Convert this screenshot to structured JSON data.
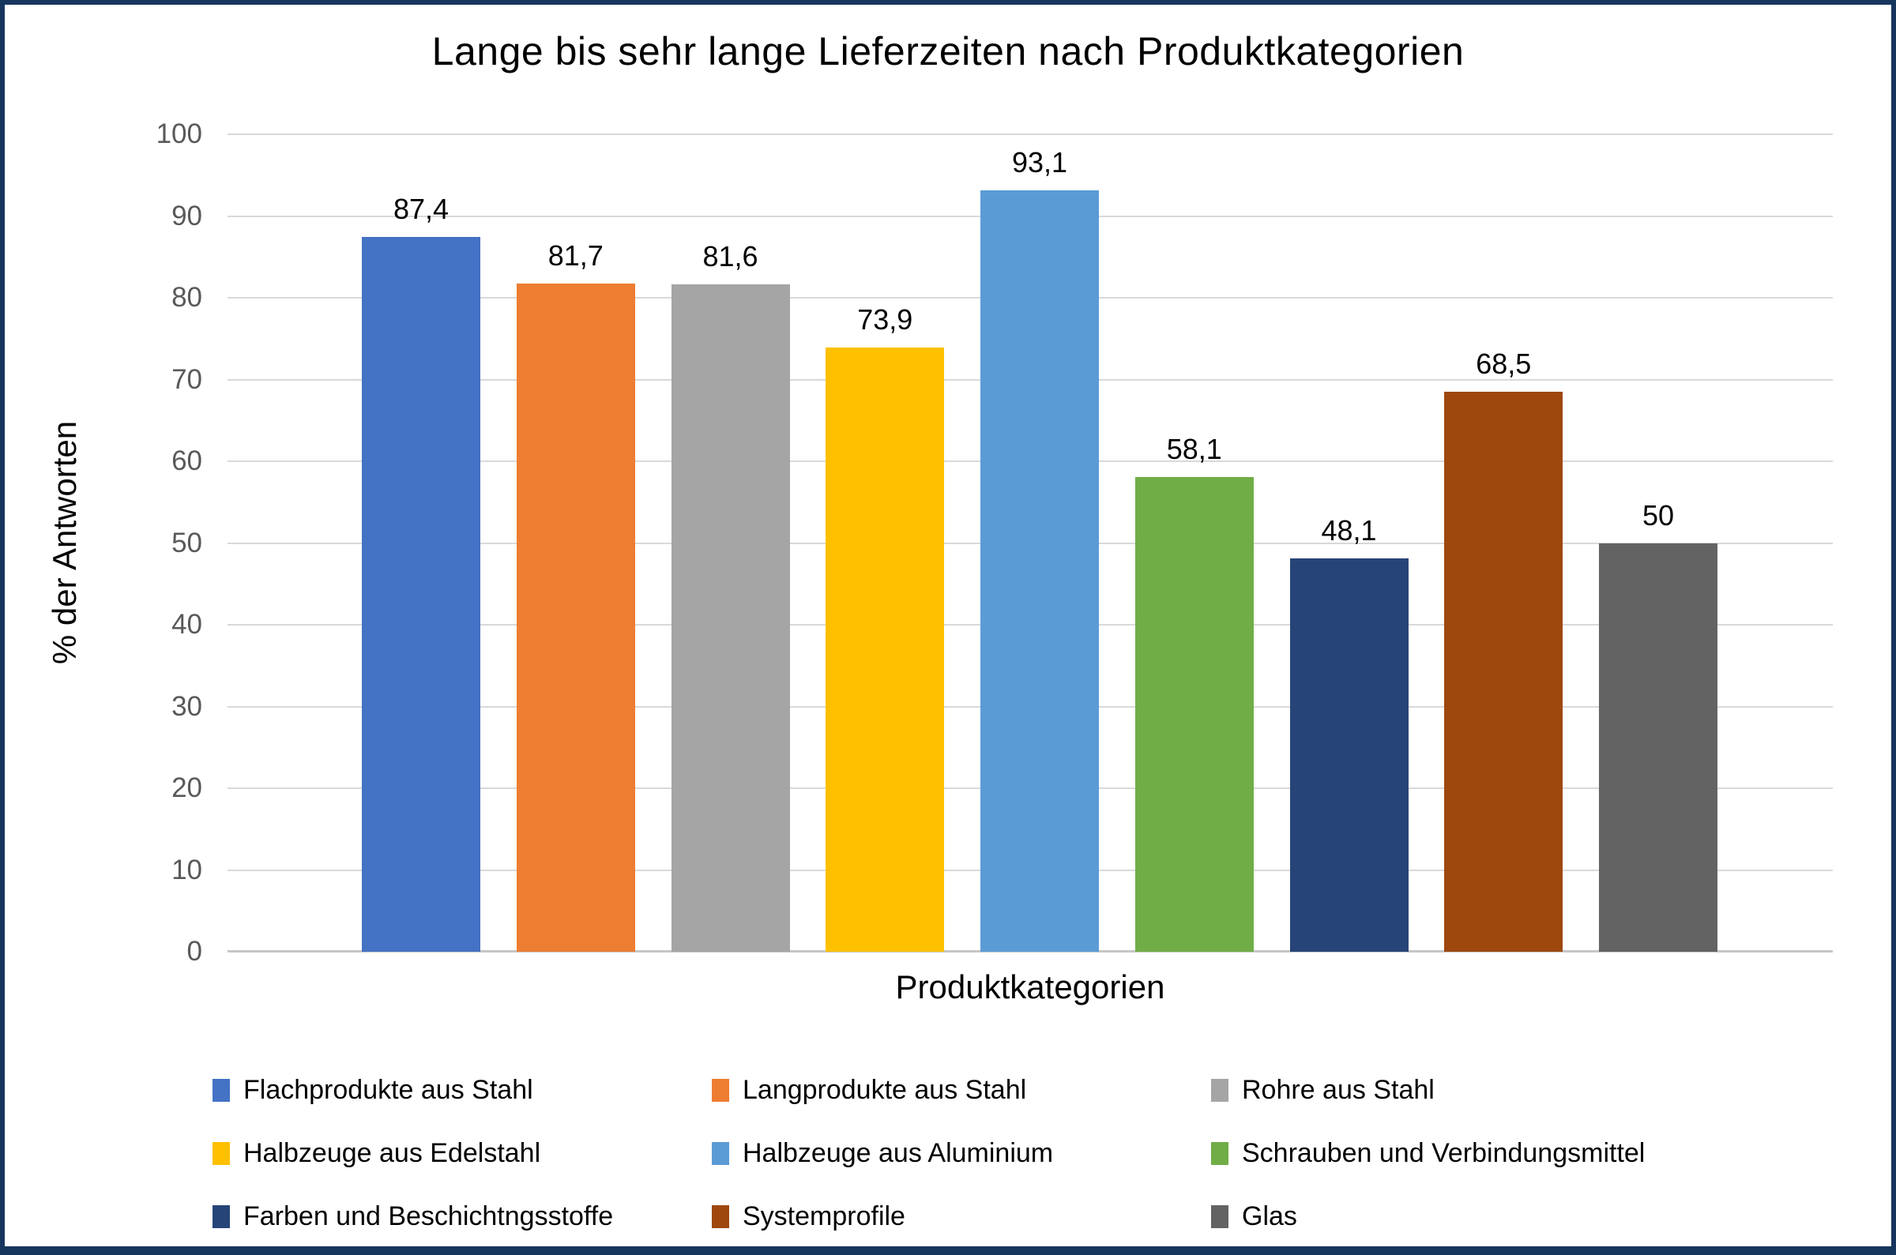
{
  "frame": {
    "border_color": "#17365D",
    "background": "#FFFFFF"
  },
  "chart_data": {
    "type": "bar",
    "title": "Lange bis sehr lange Lieferzeiten nach Produktkategorien",
    "xlabel": "Produktkategorien",
    "ylabel": "% der Antworten",
    "ylim": [
      0,
      100
    ],
    "ytick_labels": [
      "0",
      "10",
      "20",
      "30",
      "40",
      "50",
      "60",
      "70",
      "80",
      "90",
      "100"
    ],
    "grid": true,
    "legend_position": "bottom",
    "categories": [
      "Flachprodukte aus Stahl",
      "Langprodukte aus Stahl",
      "Rohre aus Stahl",
      "Halbzeuge aus Edelstahl",
      "Halbzeuge aus Aluminium",
      "Schrauben und Verbindungsmittel",
      "Farben und Beschichtngsstoffe",
      "Systemprofile",
      "Glas"
    ],
    "values": [
      87.4,
      81.7,
      81.6,
      73.9,
      93.1,
      58.1,
      48.1,
      68.5,
      50
    ],
    "value_labels": [
      "87,4",
      "81,7",
      "81,6",
      "73,9",
      "93,1",
      "58,1",
      "48,1",
      "68,5",
      "50"
    ],
    "bar_colors": [
      "#4472C4",
      "#ED7D31",
      "#A5A5A5",
      "#FFC000",
      "#5B9BD5",
      "#70AD47",
      "#264478",
      "#9E480E",
      "#636363"
    ],
    "gridline_color": "#D9D9D9",
    "axis_line_color": "#C6C6C6",
    "tick_label_color": "#595959"
  }
}
